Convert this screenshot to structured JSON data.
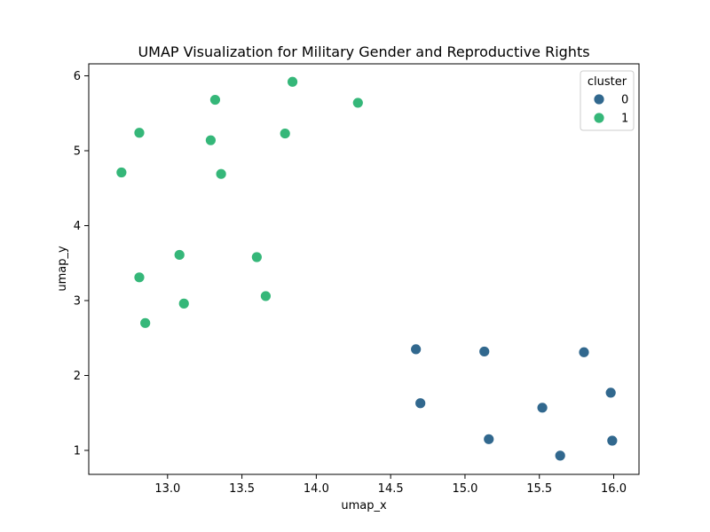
{
  "chart_data": {
    "type": "scatter",
    "title": "UMAP Visualization for Military Gender and Reproductive Rights",
    "xlabel": "umap_x",
    "ylabel": "umap_y",
    "xlim": [
      12.47,
      16.17
    ],
    "ylim": [
      0.68,
      6.16
    ],
    "xticks": [
      13.0,
      13.5,
      14.0,
      14.5,
      15.0,
      15.5,
      16.0
    ],
    "xtick_labels": [
      "13.0",
      "13.5",
      "14.0",
      "14.5",
      "15.0",
      "15.5",
      "16.0"
    ],
    "yticks": [
      1,
      2,
      3,
      4,
      5,
      6
    ],
    "ytick_labels": [
      "1",
      "2",
      "3",
      "4",
      "5",
      "6"
    ],
    "grid": false,
    "legend": {
      "title": "cluster",
      "placement": "top-right",
      "entries": [
        {
          "label": "0",
          "color": "#31688e"
        },
        {
          "label": "1",
          "color": "#35b779"
        }
      ]
    },
    "series": [
      {
        "name": "0",
        "color": "#31688e",
        "x": [
          14.67,
          15.13,
          15.8,
          14.7,
          15.98,
          15.52,
          15.16,
          15.99,
          15.64
        ],
        "y": [
          2.35,
          2.32,
          2.31,
          1.63,
          1.77,
          1.57,
          1.15,
          1.13,
          0.93
        ]
      },
      {
        "name": "1",
        "color": "#35b779",
        "x": [
          13.84,
          13.32,
          14.28,
          12.81,
          13.79,
          13.29,
          12.69,
          13.36,
          13.08,
          13.6,
          12.81,
          13.66,
          13.11,
          12.85
        ],
        "y": [
          5.92,
          5.68,
          5.64,
          5.24,
          5.23,
          5.14,
          4.71,
          4.69,
          3.61,
          3.58,
          3.31,
          3.06,
          2.96,
          2.7
        ]
      }
    ]
  }
}
